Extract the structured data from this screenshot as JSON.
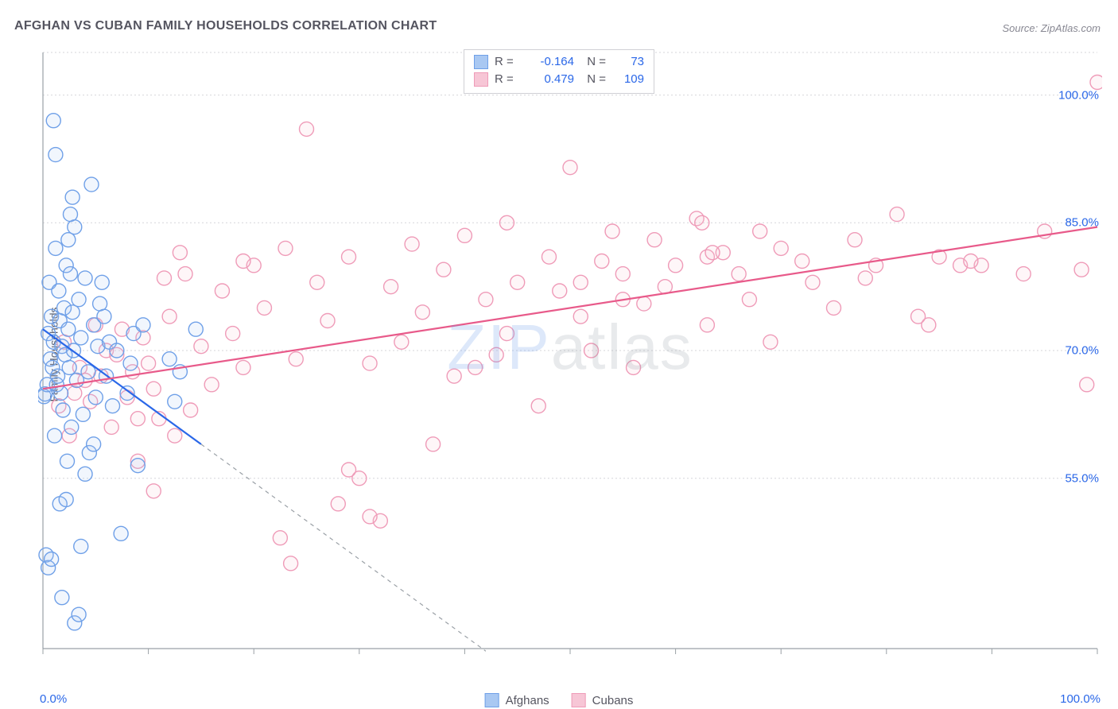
{
  "chart": {
    "title": "AFGHAN VS CUBAN FAMILY HOUSEHOLDS CORRELATION CHART",
    "source_label": "Source: ZipAtlas.com",
    "y_axis_label": "Family Households",
    "watermark_text_a": "ZIP",
    "watermark_text_b": "atlas",
    "type": "scatter",
    "background_color": "#ffffff",
    "grid_color": "#d6d6da",
    "axis_color": "#9aa0a6",
    "x_domain": [
      0,
      100
    ],
    "y_domain": [
      35,
      105
    ],
    "x_min_label": "0.0%",
    "x_max_label": "100.0%",
    "x_ticks": [
      0,
      10,
      20,
      30,
      40,
      50,
      60,
      70,
      80,
      90,
      100
    ],
    "y_ticks": [
      {
        "v": 55,
        "label": "55.0%"
      },
      {
        "v": 70,
        "label": "70.0%"
      },
      {
        "v": 85,
        "label": "85.0%"
      },
      {
        "v": 100,
        "label": "100.0%"
      }
    ],
    "marker_radius": 9,
    "marker_stroke_width": 1.4,
    "marker_fill_opacity": 0.16,
    "trend_line_width": 2.2,
    "series": [
      {
        "name": "Afghans",
        "color": "#2a67e8",
        "fill": "#a9c8f2",
        "stroke": "#6fa0e8",
        "R": "-0.164",
        "N": "73",
        "trend": {
          "x1": 0,
          "y1": 72.5,
          "x2_solid": 15,
          "y2_solid": 59.0,
          "x2_dash": 42,
          "y2_dash": 34.7
        },
        "points": [
          [
            0.1,
            64.6
          ],
          [
            0.2,
            64.9
          ],
          [
            0.4,
            66.0
          ],
          [
            0.5,
            72.0
          ],
          [
            0.6,
            78.0
          ],
          [
            0.7,
            69.0
          ],
          [
            0.8,
            74.0
          ],
          [
            0.9,
            68.0
          ],
          [
            1.0,
            71.0
          ],
          [
            1.1,
            60.0
          ],
          [
            1.2,
            82.0
          ],
          [
            1.3,
            66.0
          ],
          [
            1.4,
            67.0
          ],
          [
            1.5,
            77.0
          ],
          [
            1.6,
            73.5
          ],
          [
            1.7,
            65.0
          ],
          [
            1.8,
            70.5
          ],
          [
            1.9,
            63.0
          ],
          [
            2.0,
            75.0
          ],
          [
            2.1,
            69.5
          ],
          [
            2.2,
            80.0
          ],
          [
            2.3,
            57.0
          ],
          [
            2.4,
            72.5
          ],
          [
            2.5,
            68.0
          ],
          [
            2.6,
            79.0
          ],
          [
            2.7,
            61.0
          ],
          [
            2.8,
            74.5
          ],
          [
            2.9,
            70.0
          ],
          [
            3.0,
            84.5
          ],
          [
            3.2,
            66.5
          ],
          [
            3.4,
            76.0
          ],
          [
            3.6,
            71.5
          ],
          [
            3.8,
            62.5
          ],
          [
            4.0,
            78.5
          ],
          [
            4.3,
            67.5
          ],
          [
            4.6,
            89.5
          ],
          [
            4.8,
            73.0
          ],
          [
            0.3,
            46.0
          ],
          [
            0.5,
            44.5
          ],
          [
            0.8,
            45.5
          ],
          [
            1.0,
            97.0
          ],
          [
            1.2,
            93.0
          ],
          [
            1.6,
            52.0
          ],
          [
            1.8,
            41.0
          ],
          [
            2.2,
            52.5
          ],
          [
            2.4,
            83.0
          ],
          [
            2.6,
            86.0
          ],
          [
            2.8,
            88.0
          ],
          [
            3.0,
            38.0
          ],
          [
            3.4,
            39.0
          ],
          [
            3.6,
            47.0
          ],
          [
            4.0,
            55.5
          ],
          [
            4.4,
            58.0
          ],
          [
            4.8,
            59.0
          ],
          [
            5.0,
            64.5
          ],
          [
            5.2,
            70.5
          ],
          [
            5.4,
            75.5
          ],
          [
            5.6,
            78.0
          ],
          [
            5.8,
            74.0
          ],
          [
            6.0,
            67.0
          ],
          [
            6.3,
            71.0
          ],
          [
            6.6,
            63.5
          ],
          [
            7.0,
            70.0
          ],
          [
            7.4,
            48.5
          ],
          [
            8.0,
            65.0
          ],
          [
            8.3,
            68.5
          ],
          [
            8.6,
            72.0
          ],
          [
            9.0,
            56.5
          ],
          [
            9.5,
            73.0
          ],
          [
            12.0,
            69.0
          ],
          [
            12.5,
            64.0
          ],
          [
            13.0,
            67.5
          ],
          [
            14.5,
            72.5
          ]
        ]
      },
      {
        "name": "Cubans",
        "color": "#e85a8a",
        "fill": "#f7c6d6",
        "stroke": "#ef9bb8",
        "R": "0.479",
        "N": "109",
        "trend": {
          "x1": 0,
          "y1": 65.5,
          "x2_solid": 100,
          "y2_solid": 84.5,
          "x2_dash": 100,
          "y2_dash": 84.5
        },
        "points": [
          [
            1.5,
            63.5
          ],
          [
            2.0,
            71.0
          ],
          [
            2.5,
            60.0
          ],
          [
            3.0,
            65.0
          ],
          [
            3.5,
            68.0
          ],
          [
            4.0,
            66.5
          ],
          [
            4.5,
            64.0
          ],
          [
            5.0,
            73.0
          ],
          [
            5.5,
            67.0
          ],
          [
            6.0,
            70.0
          ],
          [
            6.5,
            61.0
          ],
          [
            7.0,
            69.5
          ],
          [
            7.5,
            72.5
          ],
          [
            8.0,
            64.5
          ],
          [
            8.5,
            67.5
          ],
          [
            9.0,
            57.0
          ],
          [
            9.5,
            71.5
          ],
          [
            10.0,
            68.5
          ],
          [
            10.5,
            65.5
          ],
          [
            11.0,
            62.0
          ],
          [
            11.5,
            78.5
          ],
          [
            12.0,
            74.0
          ],
          [
            13.0,
            81.5
          ],
          [
            13.5,
            79.0
          ],
          [
            14.0,
            63.0
          ],
          [
            15.0,
            70.5
          ],
          [
            16.0,
            66.0
          ],
          [
            17.0,
            77.0
          ],
          [
            18.0,
            72.0
          ],
          [
            19.0,
            68.0
          ],
          [
            20.0,
            80.0
          ],
          [
            21.0,
            75.0
          ],
          [
            22.5,
            48.0
          ],
          [
            23.0,
            82.0
          ],
          [
            24.0,
            69.0
          ],
          [
            25.0,
            96.0
          ],
          [
            26.0,
            78.0
          ],
          [
            27.0,
            73.5
          ],
          [
            28.0,
            52.0
          ],
          [
            29.0,
            81.0
          ],
          [
            30.0,
            55.0
          ],
          [
            31.0,
            68.5
          ],
          [
            32.0,
            50.0
          ],
          [
            33.0,
            77.5
          ],
          [
            34.0,
            71.0
          ],
          [
            35.0,
            82.5
          ],
          [
            36.0,
            74.5
          ],
          [
            37.0,
            59.0
          ],
          [
            38.0,
            79.5
          ],
          [
            39.0,
            67.0
          ],
          [
            40.0,
            83.5
          ],
          [
            42.0,
            76.0
          ],
          [
            43.0,
            69.5
          ],
          [
            44.0,
            85.0
          ],
          [
            45.0,
            78.0
          ],
          [
            47.0,
            63.5
          ],
          [
            48.0,
            81.0
          ],
          [
            49.0,
            77.0
          ],
          [
            50.0,
            91.5
          ],
          [
            51.0,
            74.0
          ],
          [
            52.0,
            70.0
          ],
          [
            53.0,
            80.5
          ],
          [
            54.0,
            84.0
          ],
          [
            55.0,
            79.0
          ],
          [
            56.0,
            68.0
          ],
          [
            57.0,
            75.5
          ],
          [
            58.0,
            83.0
          ],
          [
            59.0,
            77.5
          ],
          [
            60.0,
            80.0
          ],
          [
            62.0,
            85.5
          ],
          [
            63.0,
            73.0
          ],
          [
            64.5,
            81.5
          ],
          [
            66.0,
            79.0
          ],
          [
            67.0,
            76.0
          ],
          [
            68.0,
            84.0
          ],
          [
            69.0,
            71.0
          ],
          [
            70.0,
            82.0
          ],
          [
            72.0,
            80.5
          ],
          [
            73.0,
            78.0
          ],
          [
            75.0,
            75.0
          ],
          [
            77.0,
            83.0
          ],
          [
            79.0,
            80.0
          ],
          [
            81.0,
            86.0
          ],
          [
            83.0,
            74.0
          ],
          [
            85.0,
            81.0
          ],
          [
            87.0,
            80.0
          ],
          [
            89.0,
            80.0
          ],
          [
            93.0,
            79.0
          ],
          [
            95.0,
            84.0
          ],
          [
            99.0,
            66.0
          ],
          [
            84.0,
            73.0
          ],
          [
            63.0,
            81.0
          ],
          [
            62.5,
            85.0
          ],
          [
            63.5,
            81.5
          ],
          [
            55.0,
            76.0
          ],
          [
            41.0,
            68.0
          ],
          [
            44.0,
            72.0
          ],
          [
            51.0,
            78.0
          ],
          [
            31.0,
            50.5
          ],
          [
            12.5,
            60.0
          ],
          [
            10.5,
            53.5
          ],
          [
            9.0,
            62.0
          ],
          [
            88.0,
            80.5
          ],
          [
            78.0,
            78.5
          ],
          [
            100.0,
            101.5
          ],
          [
            98.5,
            79.5
          ],
          [
            29.0,
            56.0
          ],
          [
            23.5,
            45.0
          ],
          [
            19.0,
            80.5
          ]
        ]
      }
    ],
    "legend": {
      "series1_label": "Afghans",
      "series2_label": "Cubans"
    }
  }
}
